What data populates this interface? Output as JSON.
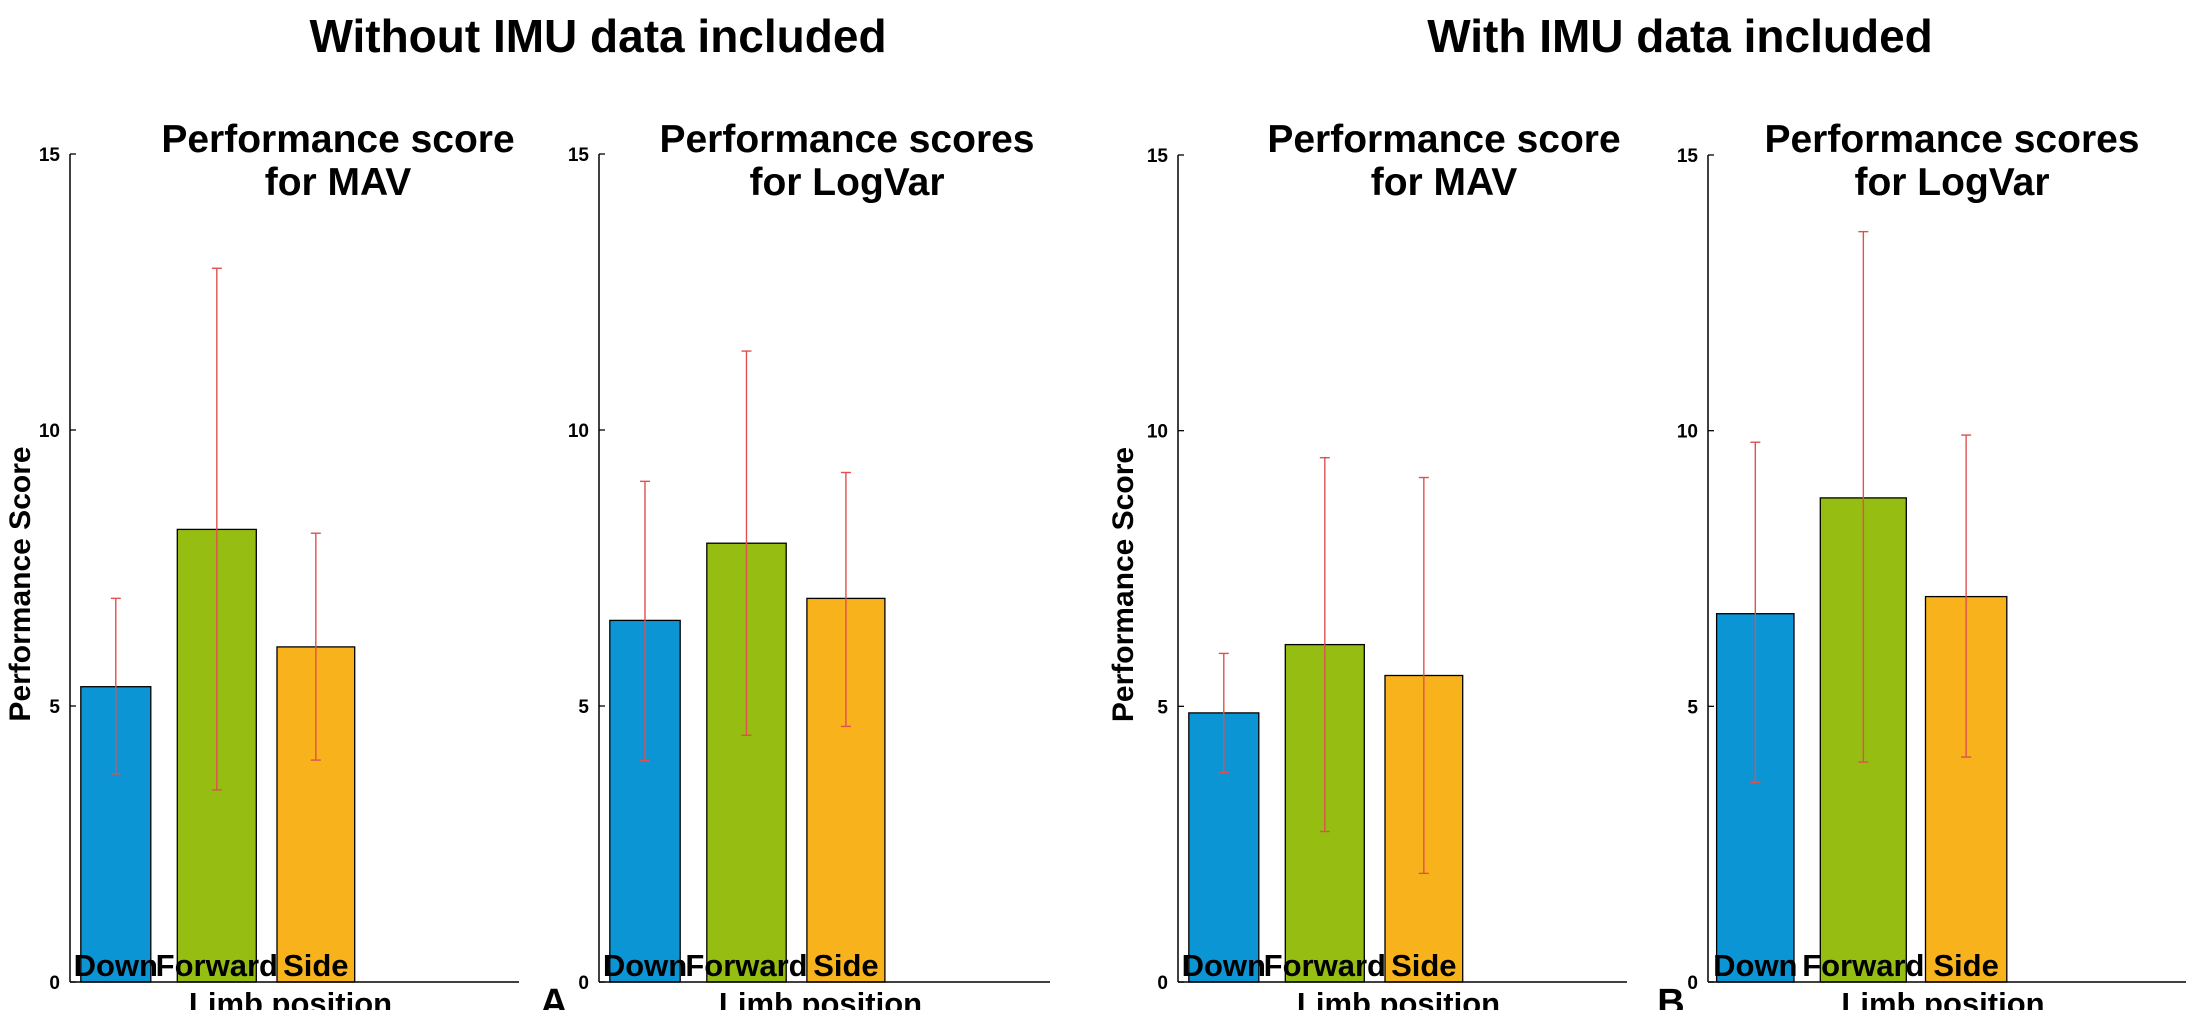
{
  "groups": [
    {
      "title": "Without IMU data included",
      "letter": "A"
    },
    {
      "title": "With IMU data included",
      "letter": "B"
    }
  ],
  "colors": {
    "Down": "#0B95D4",
    "Forward": "#96BE12",
    "Side": "#F8B21B",
    "error_bar": "#E05050",
    "axis": "#000000"
  },
  "chart_data": [
    {
      "type": "bar",
      "group": 0,
      "title": [
        "Performance score",
        "for MAV"
      ],
      "categories": [
        "Down",
        "Forward",
        "Side"
      ],
      "values": [
        5.35,
        8.2,
        6.07
      ],
      "err_low": [
        3.77,
        3.48,
        4.02
      ],
      "err_high": [
        6.95,
        12.93,
        8.13
      ],
      "ylim": [
        0,
        15
      ],
      "yticks": [
        0,
        5,
        10,
        15
      ],
      "xlabel": "Limb position",
      "ylabel": "Performance Score"
    },
    {
      "type": "bar",
      "group": 0,
      "title": [
        "Performance scores",
        "for LogVar"
      ],
      "categories": [
        "Down",
        "Forward",
        "Side"
      ],
      "values": [
        6.55,
        7.95,
        6.95
      ],
      "err_low": [
        4.01,
        4.47,
        4.63
      ],
      "err_high": [
        9.07,
        11.43,
        9.23
      ],
      "ylim": [
        0,
        15
      ],
      "yticks": [
        0,
        5,
        10,
        15
      ],
      "xlabel": "Limb position",
      "ylabel": ""
    },
    {
      "type": "bar",
      "group": 1,
      "title": [
        "Performance score",
        "for MAV"
      ],
      "categories": [
        "Down",
        "Forward",
        "Side"
      ],
      "values": [
        4.88,
        6.12,
        5.56
      ],
      "err_low": [
        3.8,
        2.73,
        1.97
      ],
      "err_high": [
        5.96,
        9.51,
        9.15
      ],
      "ylim": [
        0,
        15
      ],
      "yticks": [
        0,
        5,
        10,
        15
      ],
      "xlabel": "Limb position",
      "ylabel": "Performance Score"
    },
    {
      "type": "bar",
      "group": 1,
      "title": [
        "Performance scores",
        "for LogVar"
      ],
      "categories": [
        "Down",
        "Forward",
        "Side"
      ],
      "values": [
        6.68,
        8.78,
        6.99
      ],
      "err_low": [
        3.62,
        3.99,
        4.08
      ],
      "err_high": [
        9.79,
        13.61,
        9.92
      ],
      "ylim": [
        0,
        15
      ],
      "yticks": [
        0,
        5,
        10,
        15
      ],
      "xlabel": "Limb position",
      "ylabel": ""
    }
  ]
}
